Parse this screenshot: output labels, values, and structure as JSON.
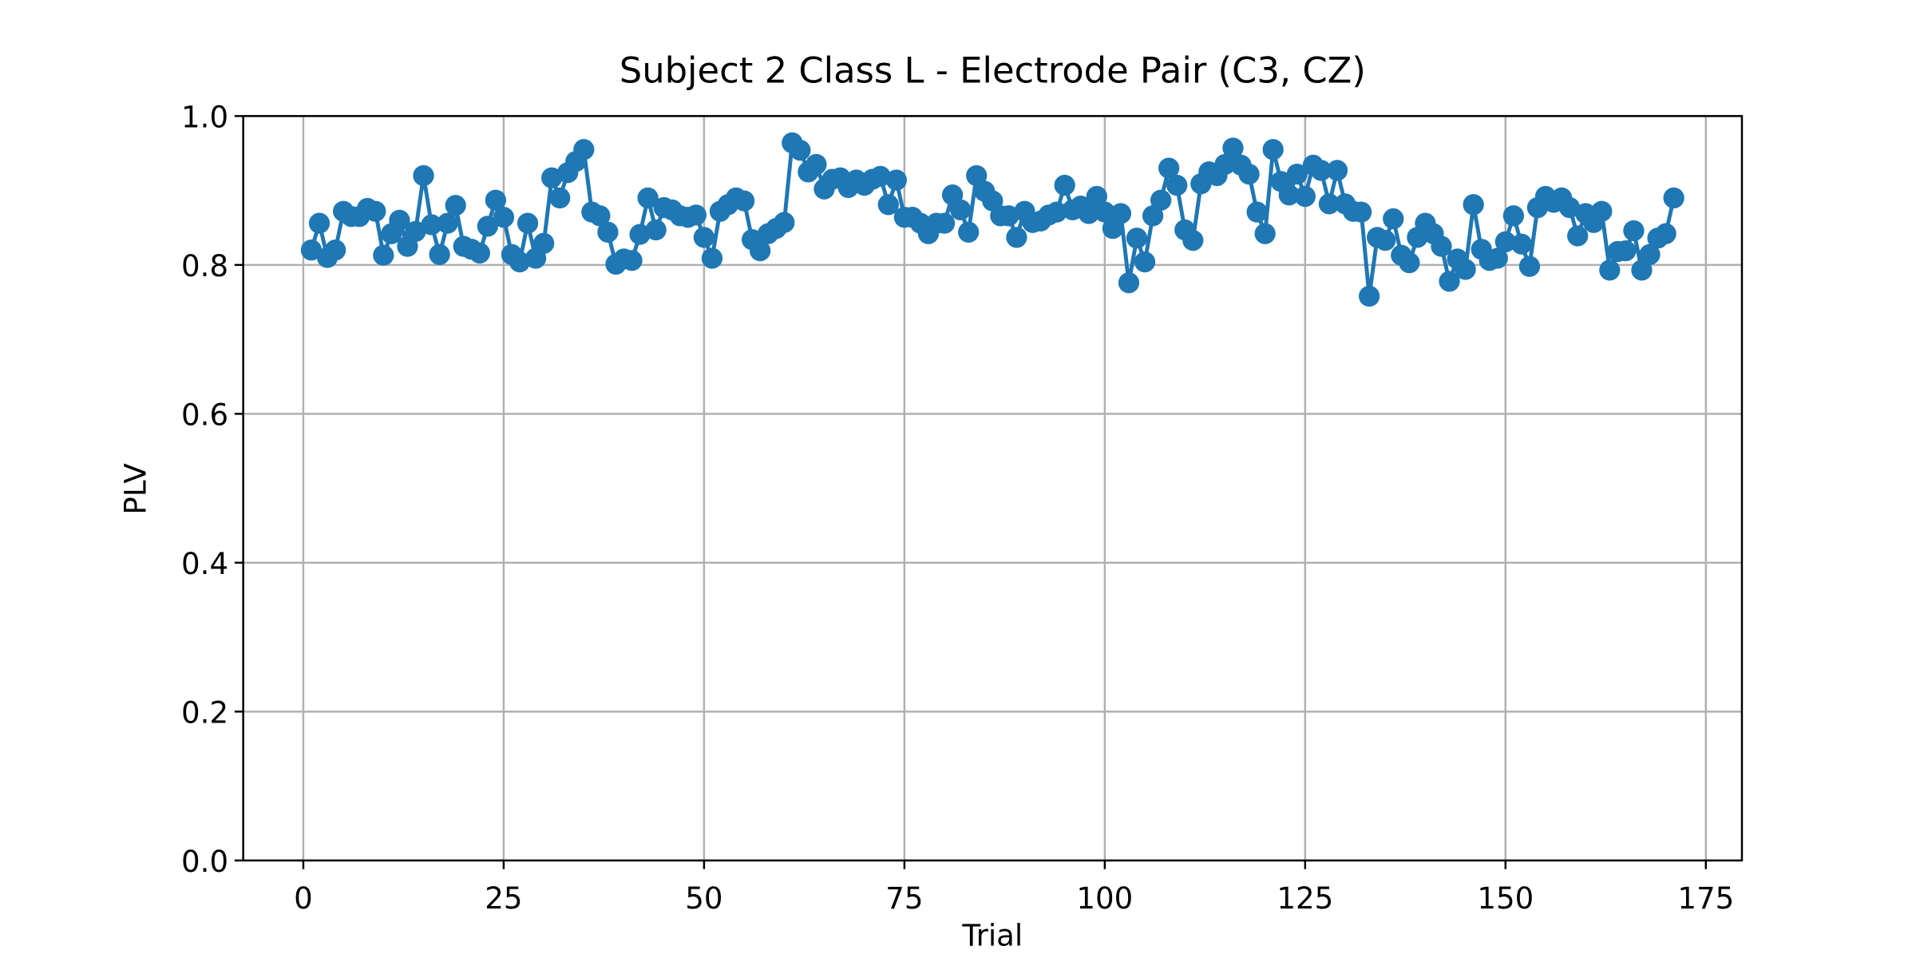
{
  "chart_data": {
    "type": "line",
    "title": "Subject 2 Class L - Electrode Pair (C3, CZ)",
    "x_label": "Trial",
    "y_label": "PLV",
    "x": [
      1,
      2,
      3,
      4,
      5,
      6,
      7,
      8,
      9,
      10,
      11,
      12,
      13,
      14,
      15,
      16,
      17,
      18,
      19,
      20,
      21,
      22,
      23,
      24,
      25,
      26,
      27,
      28,
      29,
      30,
      31,
      32,
      33,
      34,
      35,
      36,
      37,
      38,
      39,
      40,
      41,
      42,
      43,
      44,
      45,
      46,
      47,
      48,
      49,
      50,
      51,
      52,
      53,
      54,
      55,
      56,
      57,
      58,
      59,
      60,
      61,
      62,
      63,
      64,
      65,
      66,
      67,
      68,
      69,
      70,
      71,
      72,
      73,
      74,
      75,
      76,
      77,
      78,
      79,
      80,
      81,
      82,
      83,
      84,
      85,
      86,
      87,
      88,
      89,
      90,
      91,
      92,
      93,
      94,
      95,
      96,
      97,
      98,
      99,
      100,
      101,
      102,
      103,
      104,
      105,
      106,
      107,
      108,
      109,
      110,
      111,
      112,
      113,
      114,
      115,
      116,
      117,
      118,
      119,
      120,
      121,
      122,
      123,
      124,
      125,
      126,
      127,
      128,
      129,
      130,
      131,
      132,
      133,
      134,
      135,
      136,
      137,
      138,
      139,
      140,
      141,
      142,
      143,
      144,
      145,
      146,
      147,
      148,
      149,
      150,
      151,
      152,
      153,
      154,
      155,
      156,
      157,
      158,
      159,
      160,
      161,
      162,
      163,
      164,
      165,
      166,
      167,
      168,
      169,
      170,
      171
    ],
    "series": [
      {
        "name": "PLV",
        "color": "#1f77b4",
        "values": [
          0.82,
          0.856,
          0.81,
          0.82,
          0.872,
          0.865,
          0.865,
          0.876,
          0.872,
          0.813,
          0.842,
          0.86,
          0.825,
          0.845,
          0.92,
          0.854,
          0.814,
          0.856,
          0.88,
          0.825,
          0.821,
          0.816,
          0.852,
          0.887,
          0.864,
          0.814,
          0.804,
          0.856,
          0.809,
          0.829,
          0.917,
          0.89,
          0.924,
          0.939,
          0.955,
          0.871,
          0.866,
          0.844,
          0.801,
          0.808,
          0.806,
          0.841,
          0.89,
          0.847,
          0.877,
          0.874,
          0.866,
          0.864,
          0.867,
          0.837,
          0.809,
          0.872,
          0.881,
          0.89,
          0.886,
          0.834,
          0.819,
          0.842,
          0.849,
          0.857,
          0.964,
          0.954,
          0.925,
          0.935,
          0.902,
          0.915,
          0.917,
          0.904,
          0.914,
          0.907,
          0.915,
          0.919,
          0.881,
          0.914,
          0.864,
          0.864,
          0.856,
          0.842,
          0.856,
          0.856,
          0.894,
          0.874,
          0.844,
          0.92,
          0.899,
          0.886,
          0.866,
          0.866,
          0.837,
          0.872,
          0.857,
          0.859,
          0.867,
          0.871,
          0.907,
          0.874,
          0.879,
          0.869,
          0.892,
          0.871,
          0.849,
          0.869,
          0.776,
          0.836,
          0.804,
          0.866,
          0.887,
          0.93,
          0.907,
          0.847,
          0.833,
          0.909,
          0.925,
          0.92,
          0.935,
          0.957,
          0.934,
          0.922,
          0.871,
          0.842,
          0.955,
          0.912,
          0.894,
          0.922,
          0.892,
          0.934,
          0.927,
          0.882,
          0.927,
          0.882,
          0.872,
          0.871,
          0.758,
          0.837,
          0.833,
          0.862,
          0.813,
          0.803,
          0.837,
          0.856,
          0.842,
          0.825,
          0.778,
          0.808,
          0.794,
          0.881,
          0.821,
          0.806,
          0.809,
          0.831,
          0.866,
          0.828,
          0.798,
          0.877,
          0.892,
          0.884,
          0.89,
          0.877,
          0.839,
          0.869,
          0.857,
          0.872,
          0.793,
          0.818,
          0.819,
          0.846,
          0.793,
          0.814,
          0.836,
          0.842,
          0.89
        ]
      }
    ],
    "xlim": [
      -7.5,
      179.5
    ],
    "ylim": [
      0,
      1
    ],
    "xticks": [
      0,
      25,
      50,
      75,
      100,
      125,
      150,
      175
    ],
    "yticks": [
      {
        "value": 0,
        "label": "0.0"
      },
      0.2,
      0.4,
      0.6,
      0.8,
      {
        "value": 1,
        "label": "1.0"
      }
    ],
    "grid": true,
    "markers": true
  }
}
